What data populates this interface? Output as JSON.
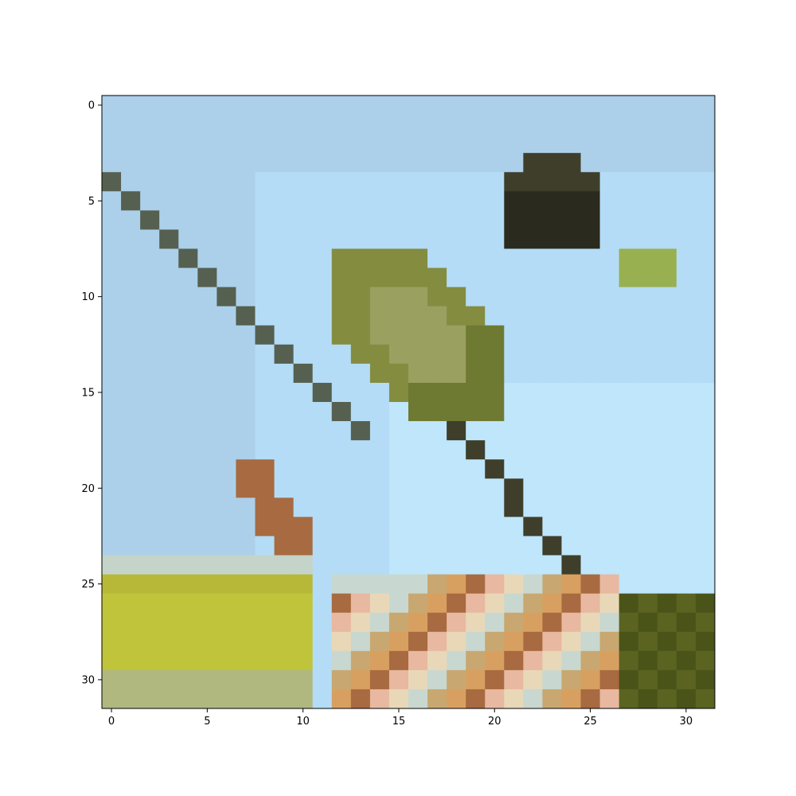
{
  "image": {
    "grid_size": 32,
    "description_colors": {
      "sky": "#b4dcf6",
      "bird_body": "#6e7a32",
      "bird_head": "#2a2a1e",
      "branch": "#556050",
      "foliage": "#c0c43a",
      "flowers": "#c07a4a"
    }
  },
  "chart_data": {
    "type": "heatmap",
    "xlim": [
      -0.5,
      31.5
    ],
    "ylim": [
      31.5,
      -0.5
    ],
    "x_ticks": [
      0,
      5,
      10,
      15,
      20,
      25,
      30
    ],
    "y_ticks": [
      0,
      5,
      10,
      15,
      20,
      25,
      30
    ],
    "x_tick_labels": [
      "0",
      "5",
      "10",
      "15",
      "20",
      "25",
      "30"
    ],
    "y_tick_labels": [
      "0",
      "5",
      "10",
      "15",
      "20",
      "25",
      "30"
    ]
  }
}
